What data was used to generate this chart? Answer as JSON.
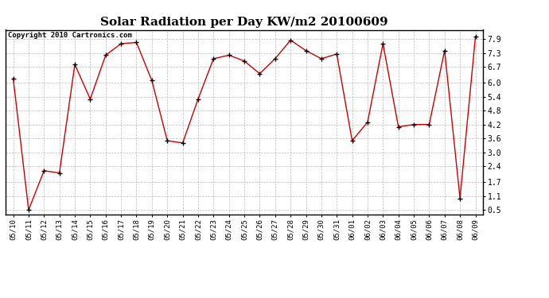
{
  "title": "Solar Radiation per Day KW/m2 20100609",
  "copyright": "Copyright 2010 Cartronics.com",
  "dates": [
    "05/10",
    "05/11",
    "05/12",
    "05/13",
    "05/14",
    "05/15",
    "05/16",
    "05/17",
    "05/18",
    "05/19",
    "05/20",
    "05/21",
    "05/22",
    "05/23",
    "05/24",
    "05/25",
    "05/26",
    "05/27",
    "05/28",
    "05/29",
    "05/30",
    "05/31",
    "06/01",
    "06/02",
    "06/03",
    "06/04",
    "06/05",
    "06/06",
    "06/07",
    "06/08",
    "06/09"
  ],
  "values": [
    6.2,
    0.5,
    2.2,
    2.1,
    6.8,
    5.3,
    7.2,
    7.7,
    7.75,
    6.1,
    3.5,
    3.4,
    5.3,
    7.05,
    7.2,
    6.95,
    6.4,
    7.05,
    7.85,
    7.4,
    7.05,
    7.25,
    3.5,
    4.3,
    7.7,
    4.1,
    4.2,
    4.2,
    7.4,
    1.0,
    8.0
  ],
  "line_color": "#cc0000",
  "marker_color": "#000000",
  "bg_color": "#ffffff",
  "grid_color": "#bbbbbb",
  "yticks": [
    0.5,
    1.1,
    1.7,
    2.4,
    3.0,
    3.6,
    4.2,
    4.8,
    5.4,
    6.0,
    6.7,
    7.3,
    7.9
  ],
  "ylim": [
    0.3,
    8.3
  ],
  "title_fontsize": 11,
  "tick_fontsize": 6.5,
  "copyright_fontsize": 6.5
}
